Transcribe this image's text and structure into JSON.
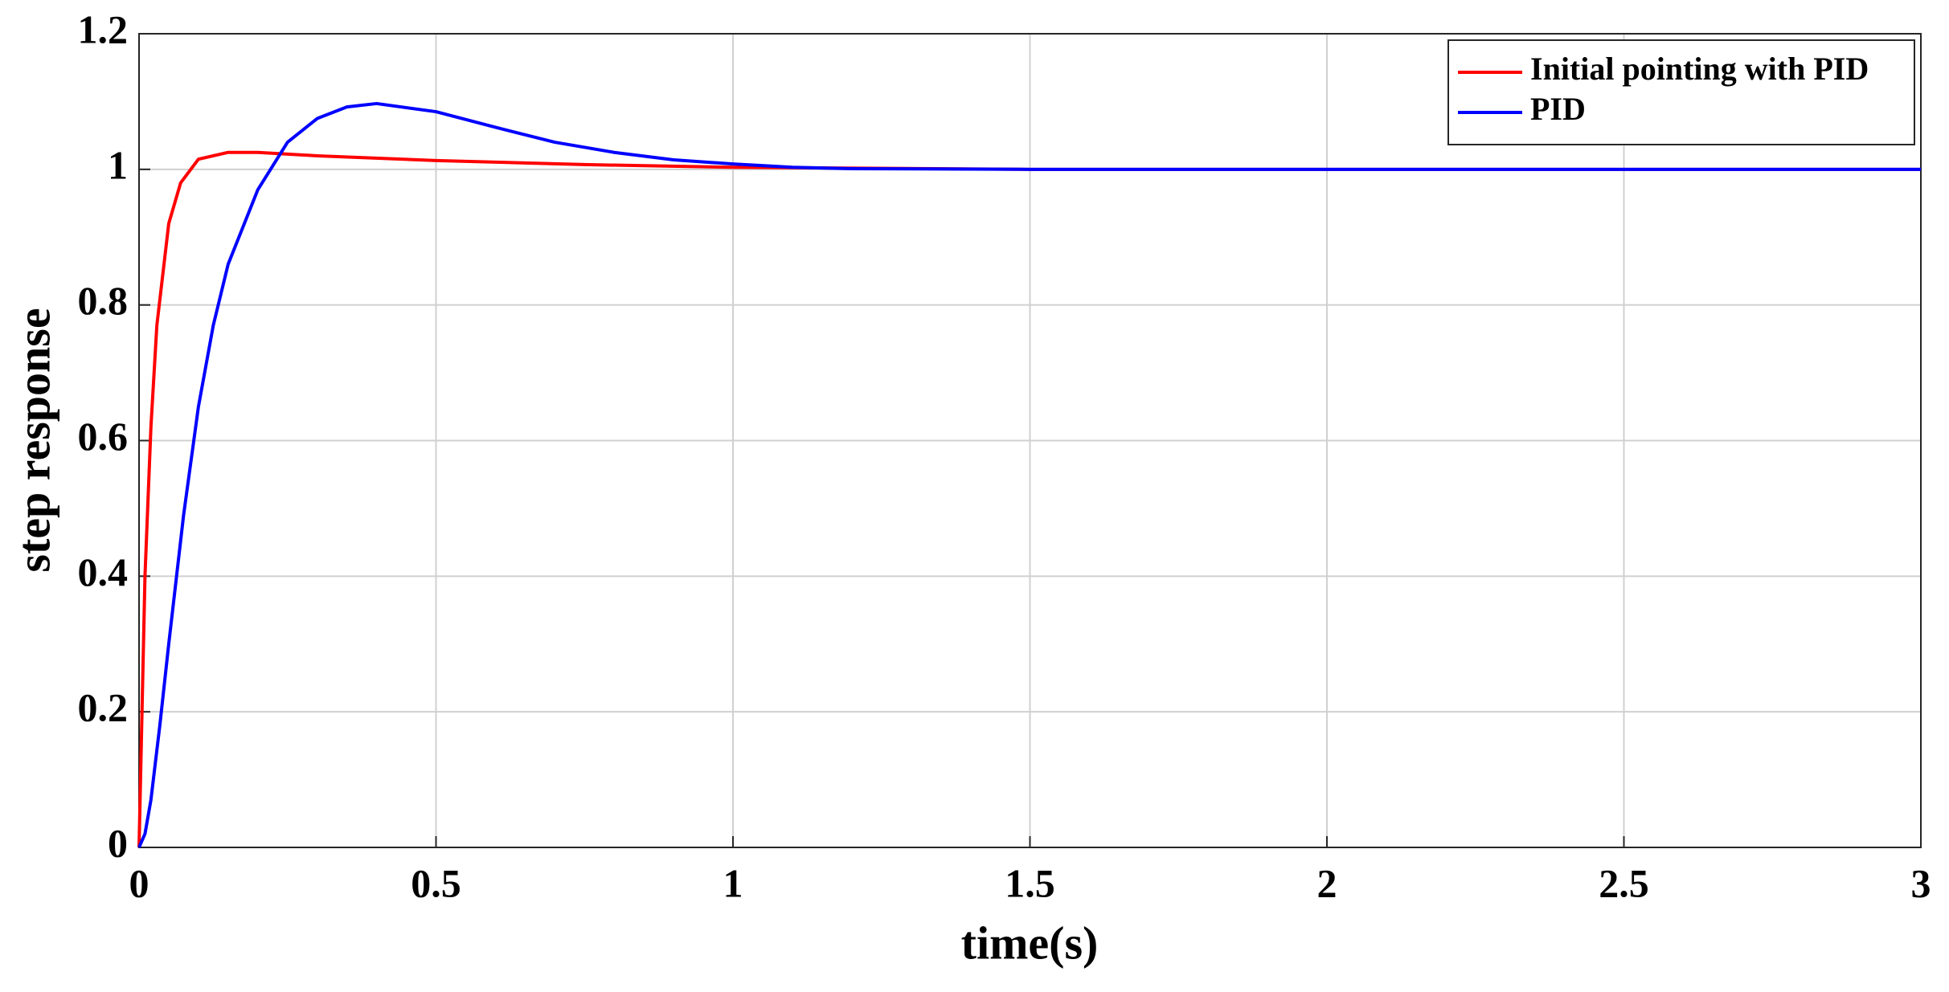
{
  "chart_data": {
    "type": "line",
    "x_label": "time(s)",
    "y_label": "step response",
    "xlim": [
      0,
      3
    ],
    "xticks": [
      0,
      0.5,
      1,
      1.5,
      2,
      2.5,
      3
    ],
    "ylim": [
      0,
      1.2
    ],
    "yticks": [
      0,
      0.2,
      0.4,
      0.6,
      0.8,
      1,
      1.2
    ],
    "grid": true,
    "legend": "upper-right",
    "series": [
      {
        "name": "Initial pointing with PID",
        "color": "#ff0000",
        "x": [
          0,
          0.005,
          0.01,
          0.02,
          0.03,
          0.05,
          0.07,
          0.1,
          0.15,
          0.2,
          0.3,
          0.5,
          0.75,
          1.0,
          1.5,
          2,
          2.5,
          3
        ],
        "values": [
          0,
          0.2,
          0.4,
          0.62,
          0.77,
          0.92,
          0.98,
          1.015,
          1.025,
          1.025,
          1.02,
          1.013,
          1.007,
          1.003,
          1.0,
          1.0,
          1.0,
          1.0
        ]
      },
      {
        "name": "PID",
        "color": "#0000ff",
        "x": [
          0,
          0.01,
          0.02,
          0.035,
          0.05,
          0.075,
          0.1,
          0.125,
          0.15,
          0.2,
          0.25,
          0.3,
          0.35,
          0.4,
          0.5,
          0.6,
          0.7,
          0.8,
          0.9,
          1.0,
          1.1,
          1.2,
          1.5,
          2,
          2.5,
          3
        ],
        "values": [
          0,
          0.02,
          0.07,
          0.18,
          0.3,
          0.49,
          0.65,
          0.77,
          0.86,
          0.97,
          1.04,
          1.075,
          1.092,
          1.097,
          1.085,
          1.062,
          1.04,
          1.025,
          1.014,
          1.008,
          1.003,
          1.001,
          1.0,
          1.0,
          1.0,
          1.0
        ]
      }
    ]
  }
}
